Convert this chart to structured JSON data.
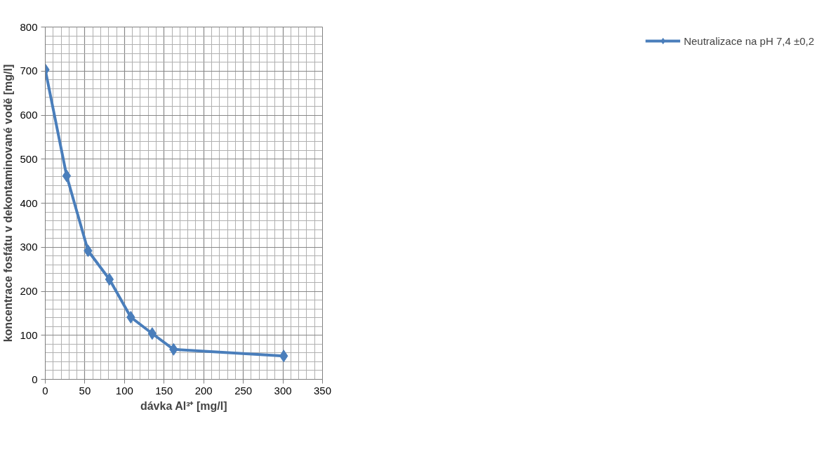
{
  "chart_data": {
    "type": "line",
    "xlabel": "dávka Al³⁺ [mg/l]",
    "ylabel": "koncentrace fosfátu v dekontaminované vodě [mg/l]",
    "x": [
      0,
      27,
      54,
      81,
      108,
      135,
      162,
      301
    ],
    "series": [
      {
        "name": "Neutralizace na pH 7,4 ±0,2",
        "color": "#4a7ebb",
        "values": [
          703,
          462,
          292,
          227,
          141,
          104,
          68,
          53
        ]
      }
    ],
    "xlim": [
      0,
      350
    ],
    "xticks": [
      0,
      50,
      100,
      150,
      200,
      250,
      300,
      350
    ],
    "ylim": [
      0,
      800
    ],
    "yticks": [
      0,
      100,
      200,
      300,
      400,
      500,
      600,
      700,
      800
    ],
    "grid": true,
    "legend": "right",
    "marker": "diamond",
    "line_style": "solid"
  }
}
